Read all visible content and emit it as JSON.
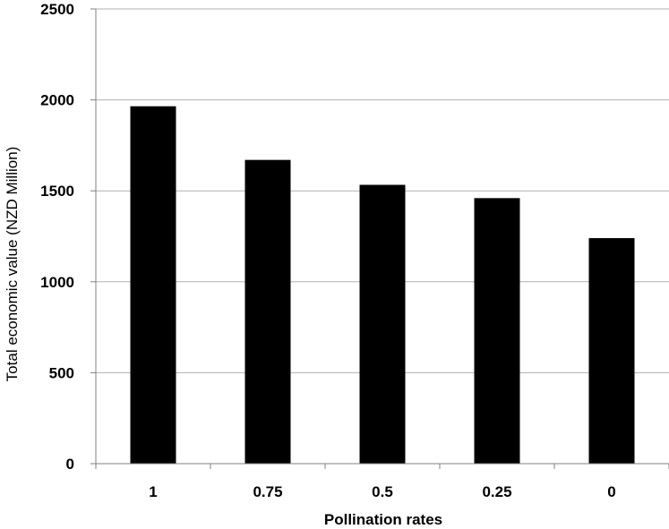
{
  "chart_data": {
    "type": "bar",
    "categories": [
      "1",
      "0.75",
      "0.5",
      "0.25",
      "0"
    ],
    "values": [
      1965,
      1670,
      1533,
      1460,
      1240
    ],
    "xlabel": "Pollination rates",
    "ylabel": "Total economic value (NZD Million)",
    "ylim": [
      0,
      2500
    ],
    "yticks": [
      "0",
      "500",
      "1000",
      "1500",
      "2000",
      "2500"
    ],
    "grid": "horizontal",
    "bar_color": "#000000",
    "grid_color": "#b0b0b0",
    "axis_color": "#808080"
  }
}
